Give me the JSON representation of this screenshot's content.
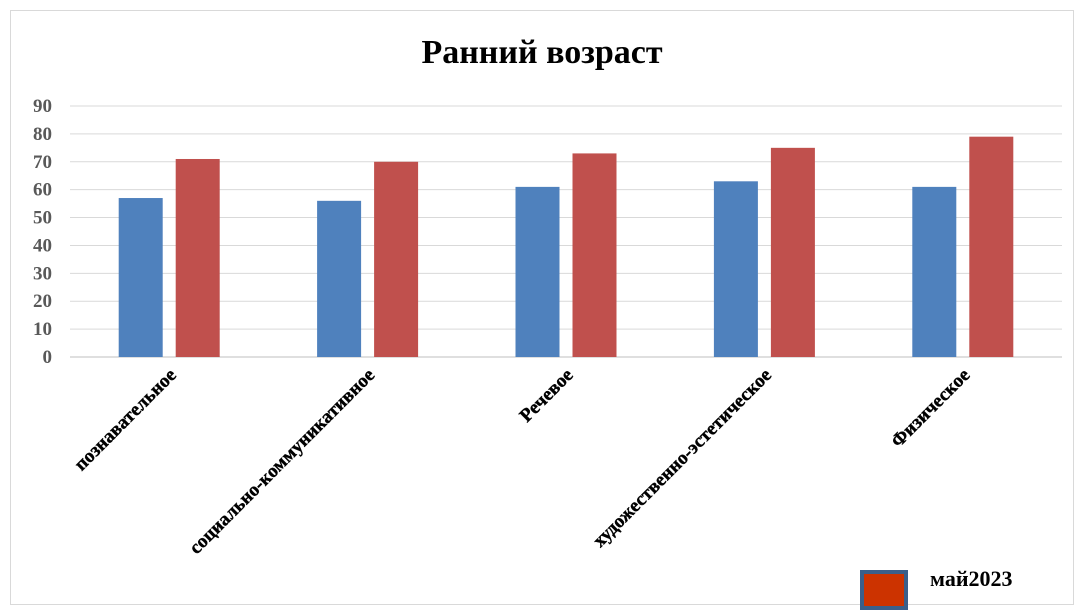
{
  "chart_data": {
    "type": "bar",
    "title": "Ранний возраст",
    "xlabel": "",
    "ylabel": "",
    "ylim": [
      0,
      90
    ],
    "yticks": [
      0,
      10,
      20,
      30,
      40,
      50,
      60,
      70,
      80,
      90
    ],
    "grid": true,
    "categories": [
      "познавательное",
      "социально-коммуникативное",
      "Речевое",
      "художественно-эстетическое",
      "Физическое"
    ],
    "series": [
      {
        "name": "",
        "color": "#4f81bd",
        "values": [
          57,
          56,
          61,
          63,
          61
        ]
      },
      {
        "name": "май2023",
        "color": "#c0504d",
        "values": [
          71,
          70,
          73,
          75,
          79
        ]
      }
    ],
    "legend": {
      "placement": "bottom-right",
      "entries": [
        {
          "label": "май2023",
          "color": "#cc3300",
          "border": "#3a5f8a"
        }
      ]
    }
  }
}
